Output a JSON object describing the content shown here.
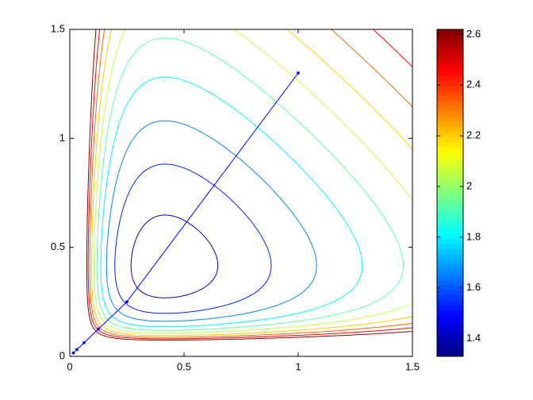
{
  "chart_data": {
    "type": "contour",
    "colormap": "jet",
    "xlim": [
      0,
      1.5
    ],
    "ylim": [
      0,
      1.5
    ],
    "xticks": [
      0,
      0.5,
      1,
      1.5
    ],
    "yticks": [
      0,
      0.5,
      1,
      1.5
    ],
    "levels": [
      1.4,
      1.53,
      1.66,
      1.8,
      1.93,
      2.06,
      2.2,
      2.33,
      2.46,
      2.6
    ],
    "series": [
      {
        "color": "#0000ff",
        "x": [
          1,
          0.25,
          0.125,
          0.0625,
          0.03125,
          0.015625
        ],
        "y": [
          1.3,
          0.25,
          0.125,
          0.0625,
          0.03125,
          0.015625
        ]
      }
    ],
    "colorbar": {
      "lim": [
        1.33,
        2.62
      ],
      "ticks": [
        1.4,
        1.6,
        1.8,
        2,
        2.2,
        2.4,
        2.6
      ]
    }
  }
}
